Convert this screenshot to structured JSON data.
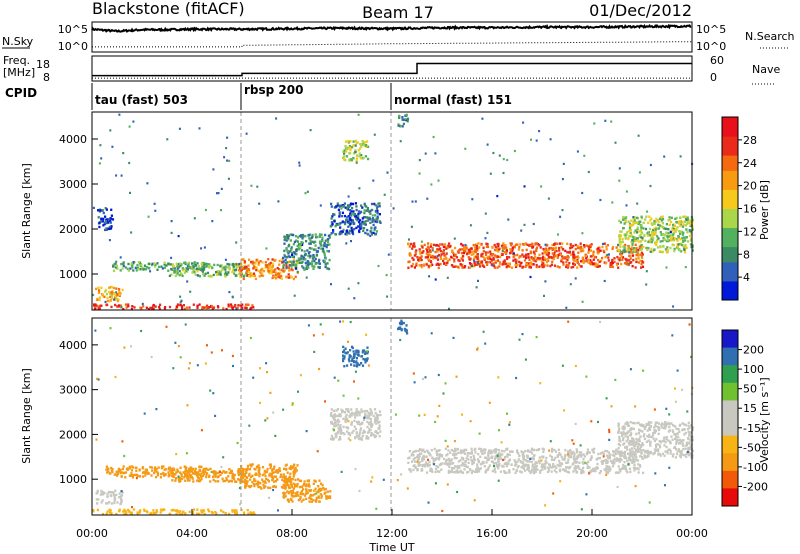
{
  "header": {
    "station": "Blackstone (fitACF)",
    "beam": "Beam 17",
    "date": "01/Dec/2012"
  },
  "left_labels": {
    "nsky": "N.Sky",
    "freq_top": "Freq.",
    "freq_unit": "[MHz]",
    "cpid": "CPID"
  },
  "right_labels": {
    "nsearch": "N.Search",
    "nave": "Nave"
  },
  "cpid_segments": [
    {
      "label": "tau (fast) 503",
      "start_hour": 0
    },
    {
      "label": "rbsp 200",
      "start_hour": 6
    },
    {
      "label": "normal (fast) 151",
      "start_hour": 12
    }
  ],
  "chart_data": [
    {
      "type": "line",
      "name": "noise",
      "title": "",
      "y_ticks_left": [
        "10^5",
        "10^0"
      ],
      "y_ticks_right": [
        "10^5",
        "10^0"
      ],
      "series": [
        {
          "name": "N.Sky",
          "x": [
            0,
            1,
            2,
            3,
            4,
            5,
            6,
            8,
            10,
            12,
            14,
            16,
            18,
            20,
            22,
            24
          ],
          "y_log10": [
            4.0,
            3.6,
            3.9,
            3.9,
            4.0,
            4.0,
            4.0,
            4.1,
            4.2,
            4.1,
            4.3,
            4.3,
            4.4,
            4.4,
            4.5,
            4.6
          ]
        },
        {
          "name": "N.Search",
          "x": [
            0,
            6,
            6,
            12,
            24
          ],
          "y_log10": [
            0.6,
            0.6,
            0.9,
            1.2,
            1.6
          ]
        }
      ]
    },
    {
      "type": "line",
      "name": "frequency-nave",
      "y_ticks_left": [
        "18",
        "8"
      ],
      "y_ticks_right": [
        "60",
        "0"
      ],
      "series": [
        {
          "name": "Freq.",
          "x": [
            0,
            6,
            6,
            13,
            13,
            24
          ],
          "y": [
            10.0,
            10.0,
            11.0,
            11.0,
            15.5,
            15.5
          ]
        },
        {
          "name": "Nave",
          "x": [
            0,
            24
          ],
          "y": [
            5,
            5
          ]
        }
      ]
    },
    {
      "type": "heatmap",
      "name": "power",
      "xlabel": "",
      "ylabel": "Slant Range [km]",
      "ylim": [
        200,
        4600
      ],
      "xlim_hours": [
        0,
        24
      ],
      "y_ticks": [
        1000,
        2000,
        3000,
        4000
      ],
      "colorbar": {
        "label": "Power [dB]",
        "ticks": [
          4,
          8,
          12,
          16,
          20,
          24,
          28
        ],
        "range": [
          0,
          32
        ]
      },
      "colors": [
        "#0018d8",
        "#3060b8",
        "#3c8a64",
        "#52b05e",
        "#aad64a",
        "#f5ca1c",
        "#f99b10",
        "#f56a10",
        "#ea2a1a",
        "#e8101a"
      ],
      "regions": [
        {
          "t": [
            0.0,
            6.5
          ],
          "r": [
            220,
            330
          ],
          "v": 28
        },
        {
          "t": [
            0.1,
            1.2
          ],
          "r": [
            400,
            720
          ],
          "v": 20
        },
        {
          "t": [
            0.8,
            4.5
          ],
          "r": [
            1080,
            1280
          ],
          "v": 10
        },
        {
          "t": [
            3.0,
            6.2
          ],
          "r": [
            950,
            1250
          ],
          "v": 12
        },
        {
          "t": [
            5.8,
            8.2
          ],
          "r": [
            900,
            1350
          ],
          "v": 22
        },
        {
          "t": [
            7.6,
            9.5
          ],
          "r": [
            1100,
            1900
          ],
          "v": 8
        },
        {
          "t": [
            9.5,
            11.5
          ],
          "r": [
            1900,
            2600
          ],
          "v": 5
        },
        {
          "t": [
            10.0,
            11.0
          ],
          "r": [
            3550,
            4000
          ],
          "v": 14
        },
        {
          "t": [
            12.6,
            22.0
          ],
          "r": [
            1150,
            1700
          ],
          "v": 25
        },
        {
          "t": [
            21.0,
            24.0
          ],
          "r": [
            1500,
            2300
          ],
          "v": 14
        },
        {
          "t": [
            0.2,
            0.8
          ],
          "r": [
            2000,
            2500
          ],
          "v": 4
        },
        {
          "t": [
            12.2,
            12.6
          ],
          "r": [
            4300,
            4600
          ],
          "v": 8
        }
      ]
    },
    {
      "type": "heatmap",
      "name": "velocity",
      "xlabel": "Time UT",
      "ylabel": "Slant Range [km]",
      "ylim": [
        200,
        4600
      ],
      "xlim_hours": [
        0,
        24
      ],
      "x_ticks": [
        "00:00",
        "04:00",
        "08:00",
        "12:00",
        "16:00",
        "20:00",
        "00:00"
      ],
      "y_ticks": [
        1000,
        2000,
        3000,
        4000
      ],
      "colorbar": {
        "label": "Velocity [m s⁻¹]",
        "ticks": [
          200,
          100,
          50,
          15,
          -15,
          -50,
          -100,
          -200
        ]
      },
      "colors": [
        "#e80a0a",
        "#f25a0a",
        "#f59a14",
        "#f8b414",
        "#c8c8c0",
        "#c8c8c0",
        "#70c030",
        "#30a050",
        "#3070b0",
        "#1818c8"
      ],
      "regions": [
        {
          "t": [
            0.0,
            6.5
          ],
          "r": [
            220,
            330
          ],
          "v": -20
        },
        {
          "t": [
            0.1,
            1.2
          ],
          "r": [
            450,
            750
          ],
          "v": 0
        },
        {
          "t": [
            0.5,
            4.5
          ],
          "r": [
            1050,
            1300
          ],
          "v": -70
        },
        {
          "t": [
            3.0,
            6.2
          ],
          "r": [
            950,
            1250
          ],
          "v": -80
        },
        {
          "t": [
            5.8,
            8.2
          ],
          "r": [
            800,
            1350
          ],
          "v": -85
        },
        {
          "t": [
            7.6,
            9.5
          ],
          "r": [
            500,
            1000
          ],
          "v": -60
        },
        {
          "t": [
            9.5,
            11.5
          ],
          "r": [
            1900,
            2600
          ],
          "v": 0
        },
        {
          "t": [
            10.0,
            11.0
          ],
          "r": [
            3550,
            4000
          ],
          "v": 150
        },
        {
          "t": [
            12.6,
            22.0
          ],
          "r": [
            1150,
            1700
          ],
          "v": 0
        },
        {
          "t": [
            21.0,
            24.0
          ],
          "r": [
            1500,
            2300
          ],
          "v": 0
        },
        {
          "t": [
            12.2,
            12.6
          ],
          "r": [
            4300,
            4600
          ],
          "v": 150
        }
      ]
    }
  ]
}
